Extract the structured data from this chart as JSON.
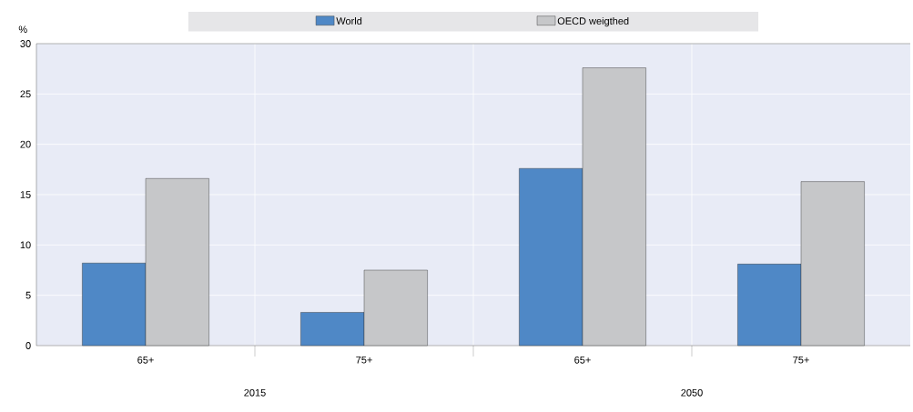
{
  "chart_data": {
    "type": "bar",
    "ylabel": "%",
    "categories": [
      "65+",
      "75+",
      "65+",
      "75+"
    ],
    "annotations": [
      "2015",
      "2050"
    ],
    "series": [
      {
        "name": "World",
        "color": "#4f88c6",
        "values": [
          8.2,
          3.3,
          17.6,
          8.1
        ]
      },
      {
        "name": "OECD weigthed",
        "color": "#c6c7c9",
        "values": [
          16.6,
          7.5,
          27.6,
          16.3
        ]
      }
    ],
    "ylim": [
      0,
      30
    ],
    "yticks": [
      0,
      5,
      10,
      15,
      20,
      25,
      30
    ],
    "grid": true,
    "legend": "top"
  }
}
